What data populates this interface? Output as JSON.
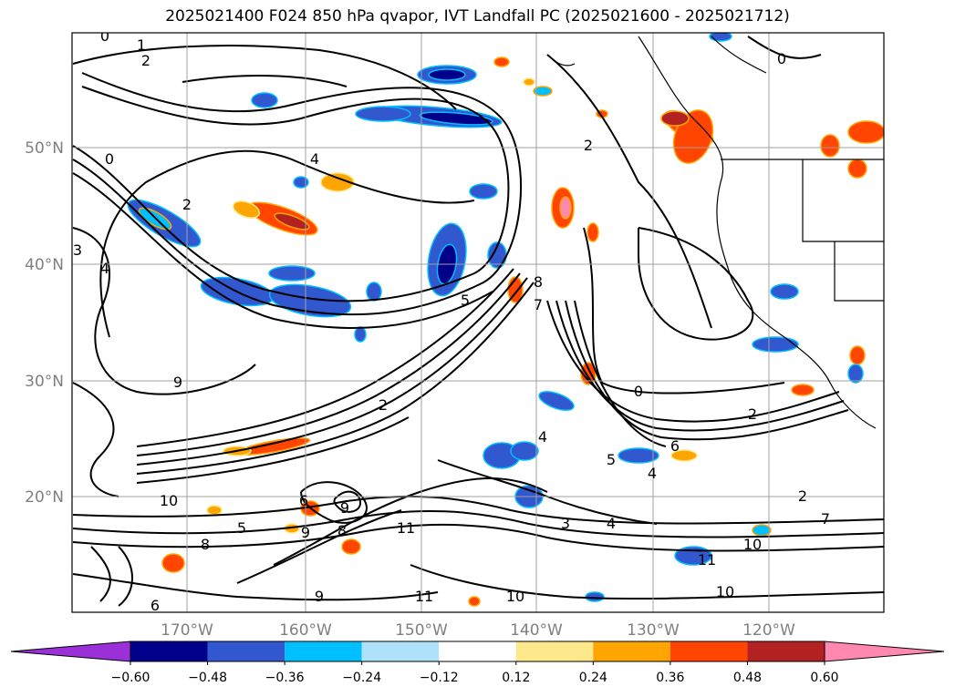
{
  "chart_data": {
    "type": "heatmap",
    "title": "2025021400 F024 850 hPa qvapor, IVT Landfall PC (2025021600 - 2025021712)",
    "lat_ticks": [
      "20°N",
      "30°N",
      "40°N",
      "50°N"
    ],
    "lon_ticks": [
      "170°W",
      "160°W",
      "150°W",
      "140°W",
      "130°W",
      "120°W"
    ],
    "grid": true,
    "colorbar": {
      "orientation": "horizontal",
      "extend": "both",
      "ticks": [
        "−0.60",
        "−0.48",
        "−0.36",
        "−0.24",
        "−0.12",
        "0.12",
        "0.24",
        "0.36",
        "0.48",
        "0.60"
      ],
      "colors": [
        "#9b30d9",
        "#00008b",
        "#3158cf",
        "#00bfff",
        "#aee2fa",
        "#ffffff",
        "#fde98b",
        "#ffa500",
        "#ff4500",
        "#b22222",
        "#ff88b0"
      ]
    },
    "contour_labels": [
      "0",
      "1",
      "2",
      "2",
      "4",
      "0",
      "2",
      "0",
      "4",
      "3",
      "2",
      "9",
      "5",
      "8",
      "7",
      "10",
      "5",
      "6",
      "9",
      "9",
      "8",
      "0",
      "2",
      "6",
      "4",
      "5",
      "4",
      "2",
      "3",
      "7",
      "10",
      "11",
      "11",
      "10",
      "11",
      "10",
      "9",
      "8",
      "6",
      "4"
    ]
  },
  "colors": {
    "axis_label": "#808080",
    "contour": "#000000",
    "grid": "#a0a0a0",
    "coast": "#000000"
  }
}
